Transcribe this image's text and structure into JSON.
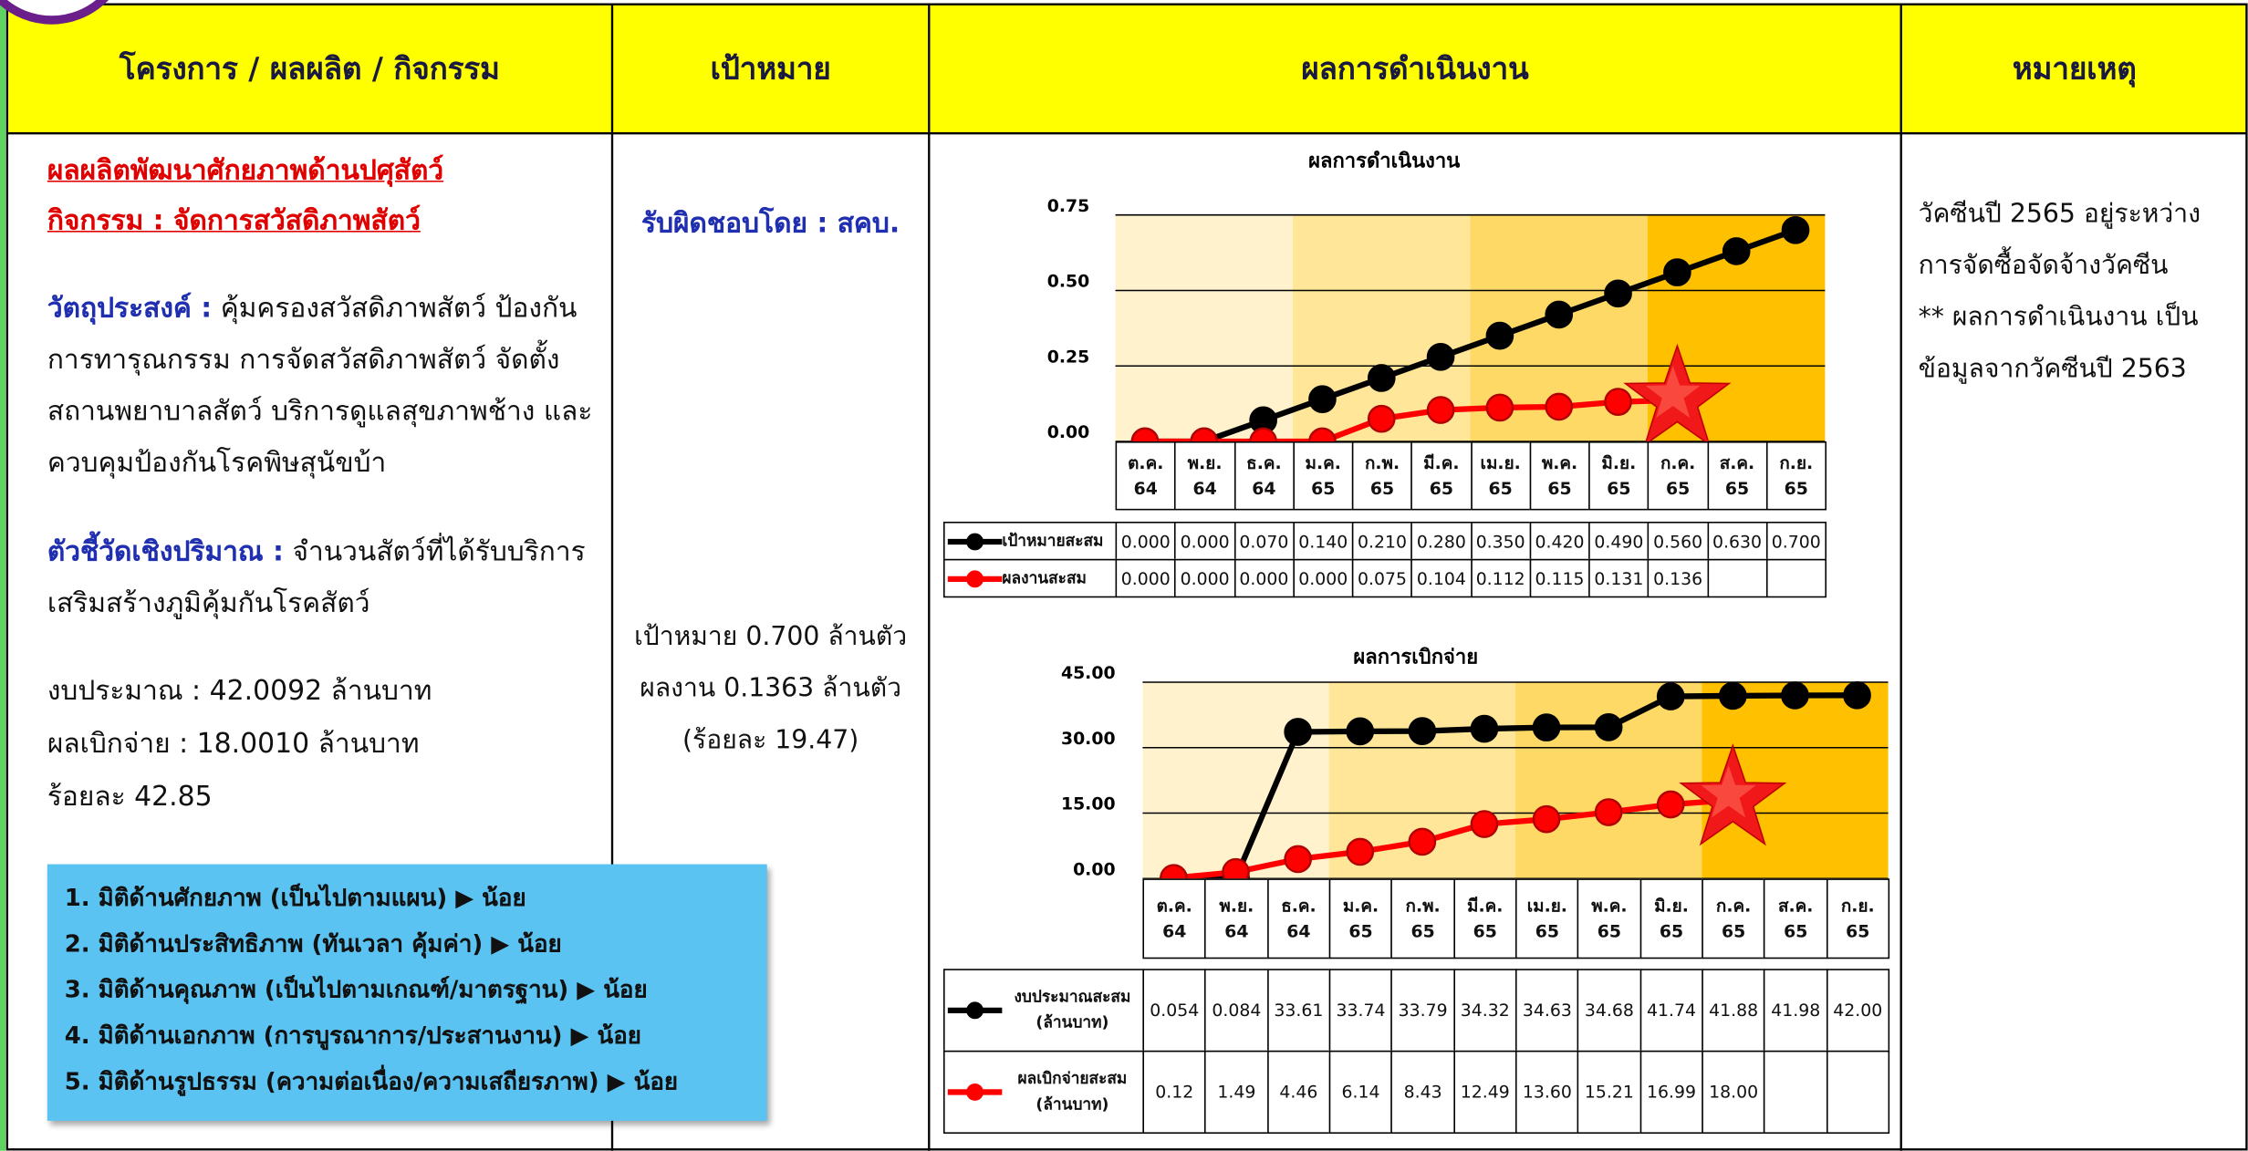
{
  "table": {
    "headers": [
      "โครงการ / ผลผลิต / กิจกรรม",
      "เป้าหมาย",
      "ผลการดำเนินงาน",
      "หมายเหตุ"
    ]
  },
  "project": {
    "output": "ผลผลิตพัฒนาศักยภาพด้านปศุสัตว์",
    "activity": "กิจกรรม : จัดการสวัสดิภาพสัตว์"
  },
  "objective": {
    "label": "วัตถุประสงค์ :",
    "text": "คุ้มครองสวัสดิภาพสัตว์ ป้องกัน การทารุณกรรม การจัดสวัสดิภาพสัตว์ จัดตั้ง สถานพยาบาลสัตว์ บริการดูแลสุขภาพช้าง และ ควบคุมป้องกันโรคพิษสุนัขบ้า"
  },
  "indicator": {
    "label": "ตัวชี้วัดเชิงปริมาณ :",
    "text": "จำนวนสัตว์ที่ได้รับบริการ เสริมสร้างภูมิคุ้มกันโรคสัตว์"
  },
  "budget": [
    "งบประมาณ : 42.0092 ล้านบาท",
    "ผลเบิกจ่าย : 18.0010 ล้านบาท",
    "ร้อยละ 42.85"
  ],
  "dimensions": [
    "1. มิติด้านศักยภาพ (เป็นไปตามแผน) ▶ น้อย",
    "2. มิติด้านประสิทธิภาพ (ทันเวลา คุ้มค่า) ▶ น้อย",
    "3. มิติด้านคุณภาพ (เป็นไปตามเกณฑ์/มาตรฐาน) ▶ น้อย",
    "4. มิติด้านเอกภาพ (การบูรณาการ/ประสานงาน) ▶ น้อย",
    "5. มิติด้านรูปธรรม (ความต่อเนื่อง/ความเสถียรภาพ) ▶ น้อย"
  ],
  "target": {
    "responsible": "รับผิดชอบโดย : สคบ.",
    "lines": [
      "เป้าหมาย 0.700 ล้านตัว",
      "ผลงาน 0.1363 ล้านตัว",
      "(ร้อยละ 19.47)"
    ]
  },
  "remarks": [
    "วัคซีนปี 2565 อยู่ระหว่าง",
    "การจัดซื้อจัดจ้างวัคซีน",
    "** ผลการดำเนินงาน เป็น",
    "ข้อมูลจากวัคซีนปี 2563"
  ],
  "chart_data": [
    {
      "type": "line",
      "title": "ผลการดำเนินงาน",
      "categories": [
        "ต.ค. 64",
        "พ.ย. 64",
        "ธ.ค. 64",
        "ม.ค. 65",
        "ก.พ. 65",
        "มี.ค. 65",
        "เม.ย. 65",
        "พ.ค. 65",
        "มิ.ย. 65",
        "ก.ค. 65",
        "ส.ค. 65",
        "ก.ย. 65"
      ],
      "series": [
        {
          "name": "เป้าหมายสะสม",
          "color": "#000000",
          "values": [
            0,
            0,
            0.07,
            0.14,
            0.21,
            0.28,
            0.35,
            0.42,
            0.49,
            0.56,
            0.63,
            0.7
          ],
          "value_labels": [
            "0.000",
            "0.000",
            "0.070",
            "0.140",
            "0.210",
            "0.280",
            "0.350",
            "0.420",
            "0.490",
            "0.560",
            "0.630",
            "0.700"
          ]
        },
        {
          "name": "ผลงานสะสม",
          "color": "#ff0000",
          "values": [
            0,
            0,
            0,
            0,
            0.075,
            0.104,
            0.112,
            0.115,
            0.131,
            0.136,
            null,
            null
          ],
          "value_labels": [
            "0.000",
            "0.000",
            "0.000",
            "0.000",
            "0.075",
            "0.104",
            "0.112",
            "0.115",
            "0.131",
            "0.136",
            null,
            null
          ]
        }
      ],
      "ylim": [
        0,
        0.75
      ],
      "yticks": [
        {
          "value": 0,
          "label": "0.00"
        },
        {
          "value": 0.25,
          "label": "0.25"
        },
        {
          "value": 0.5,
          "label": "0.50"
        },
        {
          "value": 0.75,
          "label": "0.75"
        }
      ],
      "grid": true,
      "band_colors": [
        "#fff2cc",
        "#ffe699",
        "#ffd966",
        "#ffc000"
      ]
    },
    {
      "type": "line",
      "title": "ผลการเบิกจ่าย",
      "categories": [
        "ต.ค. 64",
        "พ.ย. 64",
        "ธ.ค. 64",
        "ม.ค. 65",
        "ก.พ. 65",
        "มี.ค. 65",
        "เม.ย. 65",
        "พ.ค. 65",
        "มิ.ย. 65",
        "ก.ค. 65",
        "ส.ค. 65",
        "ก.ย. 65"
      ],
      "series": [
        {
          "name": "งบประมาณสะสม (ล้านบาท)",
          "color": "#000000",
          "values": [
            0.054,
            0.084,
            33.61,
            33.74,
            33.79,
            34.32,
            34.63,
            34.68,
            41.74,
            41.88,
            41.98,
            42.0
          ],
          "value_labels": [
            "0.054",
            "0.084",
            "33.61",
            "33.74",
            "33.79",
            "34.32",
            "34.63",
            "34.68",
            "41.74",
            "41.88",
            "41.98",
            "42.00"
          ]
        },
        {
          "name": "ผลเบิกจ่ายสะสม (ล้านบาท)",
          "color": "#ff0000",
          "values": [
            0.12,
            1.49,
            4.46,
            6.14,
            8.43,
            12.49,
            13.6,
            15.21,
            16.99,
            18.0,
            null,
            null
          ],
          "value_labels": [
            "0.12",
            "1.49",
            "4.46",
            "6.14",
            "8.43",
            "12.49",
            "13.60",
            "15.21",
            "16.99",
            "18.00",
            null,
            null
          ]
        }
      ],
      "ylim": [
        0,
        45
      ],
      "yticks": [
        {
          "value": 0,
          "label": "0.00"
        },
        {
          "value": 15,
          "label": "15.00"
        },
        {
          "value": 30,
          "label": "30.00"
        },
        {
          "value": 45,
          "label": "45.00"
        }
      ],
      "grid": true,
      "band_colors": [
        "#fff2cc",
        "#ffe699",
        "#ffd966",
        "#ffc000"
      ]
    }
  ]
}
